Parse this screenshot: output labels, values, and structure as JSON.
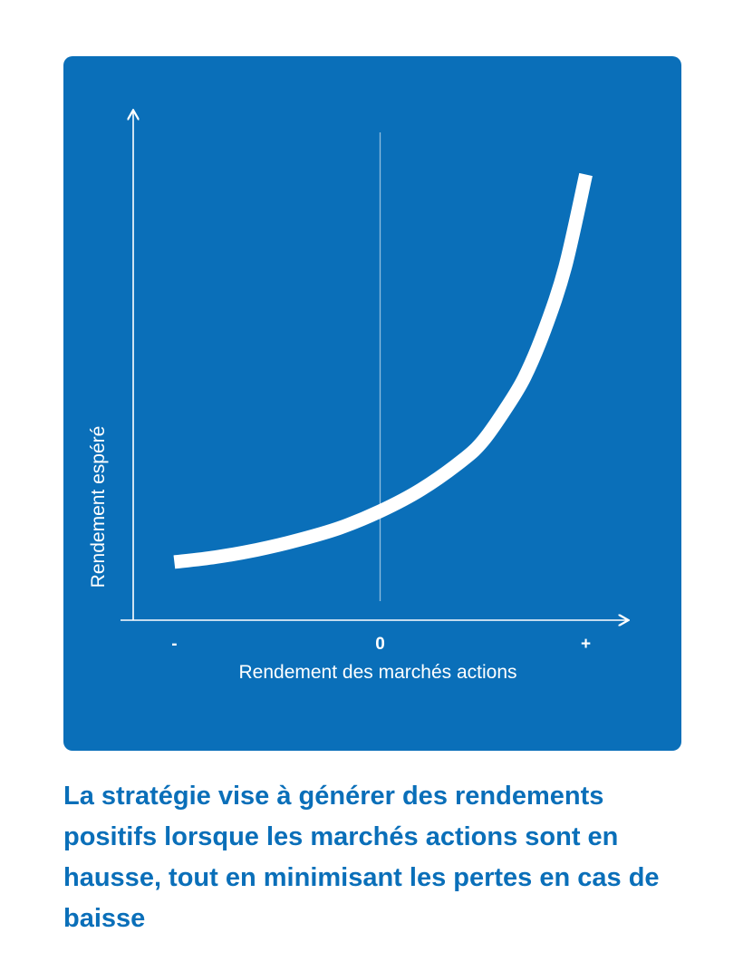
{
  "chart_data": {
    "type": "line",
    "title": "",
    "xlabel": "Rendement des marchés actions",
    "ylabel": "Rendement espéré",
    "x_ticks": [
      "-",
      "0",
      "+"
    ],
    "series": [
      {
        "x": [
          -1.0,
          -0.8,
          -0.6,
          -0.4,
          -0.2,
          0.0,
          0.2,
          0.4,
          0.5,
          0.6,
          0.7,
          0.8,
          0.9,
          1.0
        ],
        "y": [
          0.12,
          0.13,
          0.145,
          0.165,
          0.19,
          0.225,
          0.27,
          0.33,
          0.37,
          0.43,
          0.5,
          0.6,
          0.73,
          0.92
        ]
      }
    ],
    "xlim": [
      -1.2,
      1.2
    ],
    "ylim": [
      0,
      1.05
    ],
    "colors": {
      "background": "#0a6fb9",
      "line": "#ffffff",
      "axis": "#ffffff"
    },
    "grid": false
  },
  "caption": "La stratégie vise à générer des rendements positifs lorsque les marchés actions sont en hausse, tout en minimisant les pertes en cas de baisse"
}
